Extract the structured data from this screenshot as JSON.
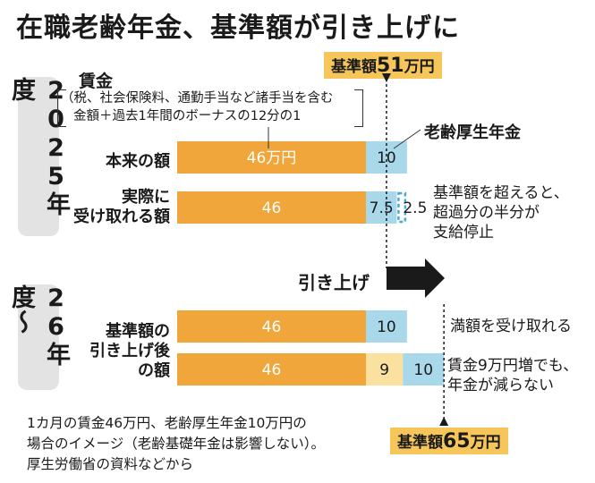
{
  "title": "在職老齢年金、基準額が引き上げに",
  "periods": {
    "y2025": "2025年度",
    "y2026": "26年度〜"
  },
  "wage": {
    "title": "賃金",
    "note_line1": "（税、社会保険料、通勤手当など諸手当を含む",
    "note_line2": "金額＋過去1年間のボーナスの12分の1"
  },
  "pension_label": "老齢厚生年金",
  "base_amounts": {
    "current": {
      "prefix": "基準額",
      "value": "51",
      "suffix": "万円"
    },
    "new": {
      "prefix": "基準額",
      "value": "65",
      "suffix": "万円"
    }
  },
  "rows": {
    "original": "本来の額",
    "actual_line1": "実際に",
    "actual_line2": "受け取れる額",
    "after_line1": "基準額の",
    "after_line2": "引き上げ後",
    "after_line3": "の額"
  },
  "notes": {
    "over_line1": "基準額を超えると、",
    "over_line2": "超過分の半分が",
    "over_line3": "支給停止",
    "full": "満額を受け取れる",
    "increase_line1": "賃金9万円増でも、",
    "increase_line2": "年金が減らない"
  },
  "arrow_label": "引き上げ",
  "footer": {
    "line1": "1カ月の賃金46万円、老齢厚生年金10万円の",
    "line2": "場合のイメージ（老齢基礎年金は影響しない）。",
    "line3": "厚生労働省の資料などから"
  },
  "colors": {
    "wage": "#f0a63a",
    "pension": "#a9d8ea",
    "extra_wage": "#fbe1a0",
    "stopped_border": "#4aa8d0",
    "highlight": "#f7c65a"
  },
  "chart_data": {
    "type": "bar",
    "orientation": "horizontal",
    "stacked": true,
    "unit": "万円",
    "categories": [
      "本来の額",
      "実際に受け取れる額",
      "基準額の引き上げ後の額",
      "基準額の引き上げ後の額"
    ],
    "series": [
      {
        "name": "賃金",
        "values": [
          46,
          46,
          46,
          46
        ],
        "labels": [
          "46万円",
          "46",
          "46",
          "46"
        ]
      },
      {
        "name": "",
        "values": [
          0,
          0,
          0,
          9
        ],
        "labels": [
          "",
          "",
          "",
          "9"
        ]
      },
      {
        "name": "老齢厚生年金",
        "values": [
          10,
          7.5,
          10,
          10
        ],
        "labels": [
          "10",
          "7.5",
          "10",
          "10"
        ]
      },
      {
        "name": "",
        "values": [
          0,
          2.5,
          0,
          0
        ],
        "labels": [
          "",
          "2.5",
          "",
          ""
        ]
      }
    ],
    "reference_lines": [
      51,
      65
    ]
  }
}
